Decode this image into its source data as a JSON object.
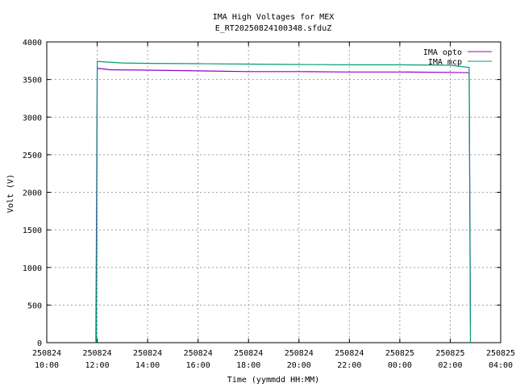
{
  "chart_data": {
    "type": "line",
    "title": "IMA High Voltages for MEX",
    "subtitle": "E_RT20250824100348.sfduZ",
    "xlabel": "Time (yymmdd HH:MM)",
    "ylabel": "Volt (V)",
    "xlim": [
      0,
      18
    ],
    "ylim": [
      0,
      4000
    ],
    "x_unit": "hours since 250824 10:00",
    "x_ticks": [
      {
        "x": 0,
        "date": "250824",
        "time": "10:00"
      },
      {
        "x": 2,
        "date": "250824",
        "time": "12:00"
      },
      {
        "x": 4,
        "date": "250824",
        "time": "14:00"
      },
      {
        "x": 6,
        "date": "250824",
        "time": "16:00"
      },
      {
        "x": 8,
        "date": "250824",
        "time": "18:00"
      },
      {
        "x": 10,
        "date": "250824",
        "time": "20:00"
      },
      {
        "x": 12,
        "date": "250824",
        "time": "22:00"
      },
      {
        "x": 14,
        "date": "250825",
        "time": "00:00"
      },
      {
        "x": 16,
        "date": "250825",
        "time": "02:00"
      },
      {
        "x": 18,
        "date": "250825",
        "time": "04:00"
      }
    ],
    "y_ticks": [
      0,
      500,
      1000,
      1500,
      2000,
      2500,
      3000,
      3500,
      4000
    ],
    "grid": true,
    "legend": "top-right",
    "series": [
      {
        "name": "IMA opto",
        "color": "#9400d3",
        "points": [
          [
            1.95,
            0
          ],
          [
            1.95,
            180
          ],
          [
            2.0,
            3650
          ],
          [
            2.5,
            3630
          ],
          [
            4,
            3625
          ],
          [
            6,
            3615
          ],
          [
            8,
            3605
          ],
          [
            10,
            3605
          ],
          [
            12,
            3600
          ],
          [
            14,
            3600
          ],
          [
            16,
            3595
          ],
          [
            16.75,
            3590
          ],
          [
            16.8,
            250
          ]
        ]
      },
      {
        "name": "IMA mcp",
        "color": "#009e73",
        "points": [
          [
            1.95,
            0
          ],
          [
            1.97,
            20
          ],
          [
            2.0,
            3740
          ],
          [
            3,
            3720
          ],
          [
            4,
            3715
          ],
          [
            6,
            3710
          ],
          [
            8,
            3705
          ],
          [
            10,
            3700
          ],
          [
            12,
            3695
          ],
          [
            14,
            3695
          ],
          [
            16,
            3690
          ],
          [
            16.75,
            3660
          ],
          [
            16.8,
            0
          ]
        ]
      }
    ]
  }
}
